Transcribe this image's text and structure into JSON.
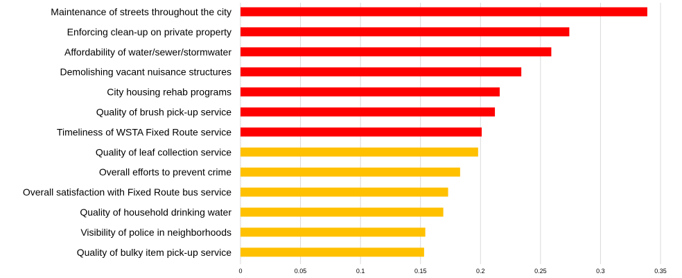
{
  "chart_data": {
    "type": "bar",
    "orientation": "horizontal",
    "title": "",
    "xlabel": "",
    "ylabel": "",
    "categories": [
      "Maintenance of streets throughout the city",
      "Enforcing clean-up on private property",
      "Affordability of water/sewer/stormwater",
      "Demolishing vacant nuisance structures",
      "City housing rehab programs",
      "Quality of brush pick-up service",
      "Timeliness of WSTA Fixed Route service",
      "Quality of leaf collection service",
      "Overall efforts to prevent crime",
      "Overall satisfaction with Fixed Route bus service",
      "Quality of household drinking water",
      "Visibility of police in neighborhoods",
      "Quality of bulky item pick-up service"
    ],
    "values": [
      0.339,
      0.274,
      0.259,
      0.234,
      0.216,
      0.212,
      0.201,
      0.198,
      0.183,
      0.173,
      0.169,
      0.154,
      0.153
    ],
    "bar_colors": [
      "#ff0000",
      "#ff0000",
      "#ff0000",
      "#ff0000",
      "#ff0000",
      "#ff0000",
      "#ff0000",
      "#ffc000",
      "#ffc000",
      "#ffc000",
      "#ffc000",
      "#ffc000",
      "#ffc000"
    ],
    "xlim": [
      0,
      0.35
    ],
    "xticks": [
      0,
      0.05,
      0.1,
      0.15,
      0.2,
      0.25,
      0.3,
      0.35
    ],
    "xtick_labels": [
      "0",
      "0.05",
      "0.1",
      "0.15",
      "0.2",
      "0.25",
      "0.3",
      "0.35"
    ],
    "grid": true,
    "legend": "none"
  }
}
